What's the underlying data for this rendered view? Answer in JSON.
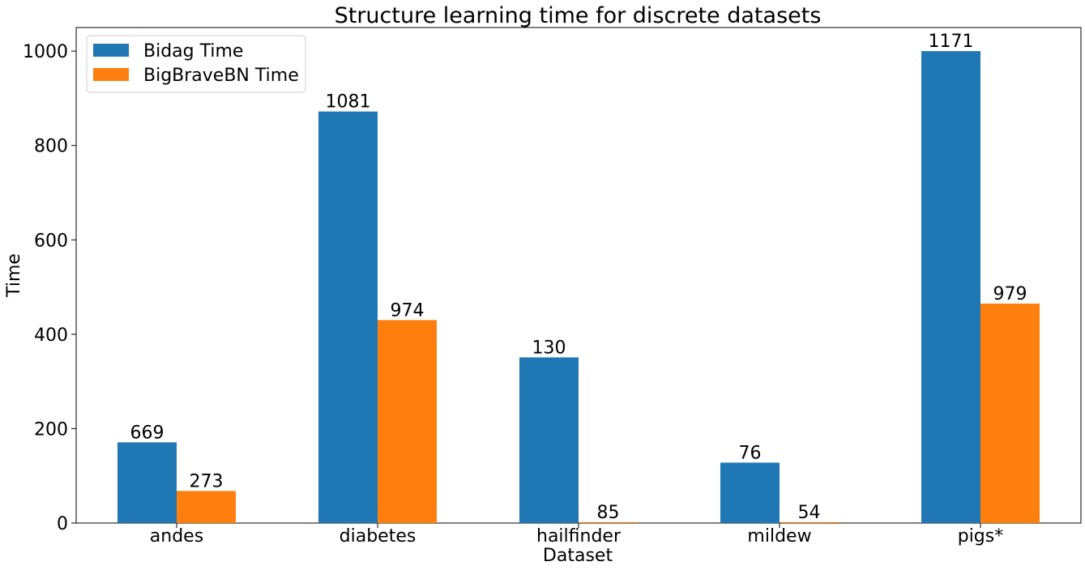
{
  "chart_data": {
    "type": "bar",
    "title": "Structure learning time for discrete datasets",
    "xlabel": "Dataset",
    "ylabel": "Time",
    "categories": [
      "andes",
      "diabetes",
      "hailfinder",
      "mildew",
      "pigs*"
    ],
    "series": [
      {
        "name": "Bidag Time",
        "color": "#1f77b4",
        "values": [
          171,
          872,
          351,
          128,
          1000
        ],
        "labels": [
          "669",
          "1081",
          "130",
          "76",
          "1171"
        ]
      },
      {
        "name": "BigBraveBN Time",
        "color": "#ff7f0e",
        "values": [
          68,
          430,
          2,
          2,
          465
        ],
        "labels": [
          "273",
          "974",
          "85",
          "54",
          "979"
        ]
      }
    ],
    "ylim": [
      0,
      1050
    ],
    "yticks": [
      0,
      200,
      400,
      600,
      800,
      1000
    ],
    "grid": false,
    "legend_position": "top-left"
  }
}
